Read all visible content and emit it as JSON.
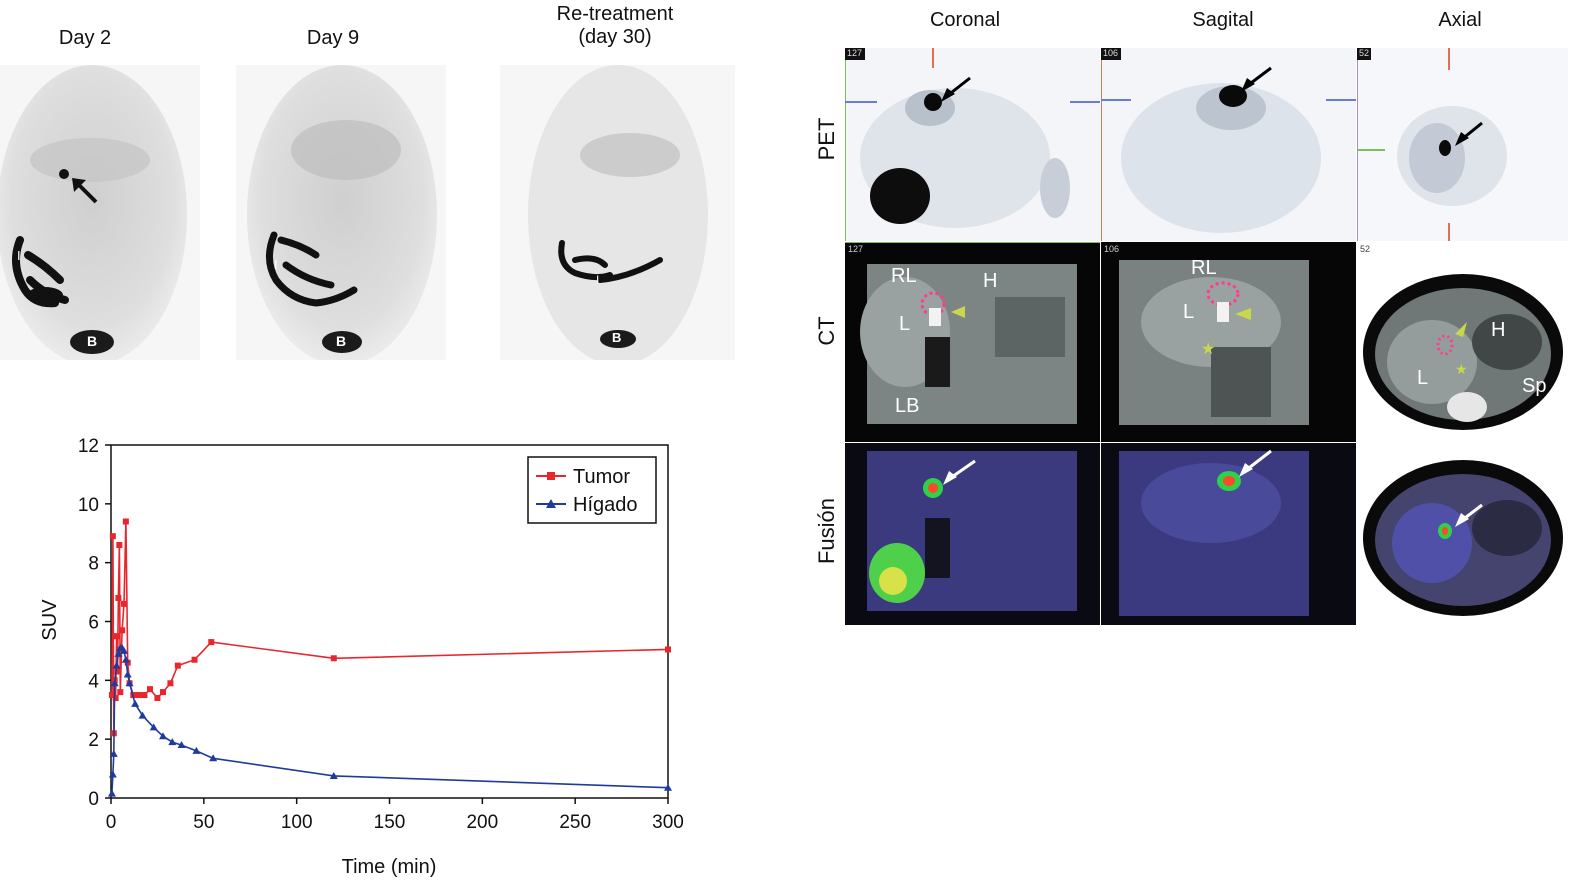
{
  "top_left": {
    "titles": [
      {
        "line1": "Day 2",
        "line2": ""
      },
      {
        "line1": "Day 9",
        "line2": ""
      },
      {
        "line1": "Re-treatment",
        "line2": "(day 30)"
      }
    ],
    "organ_labels": {
      "intestine": "I",
      "bladder": "B"
    }
  },
  "right_grid": {
    "columns": [
      "Coronal",
      "Sagital",
      "Axial"
    ],
    "rows": [
      "PET",
      "CT",
      "Fusión"
    ],
    "slice_numbers": [
      "127",
      "106",
      "52"
    ],
    "ct_labels": {
      "coronal": [
        "RL",
        "H",
        "L",
        "LB"
      ],
      "sagittal": [
        "RL",
        "L"
      ],
      "axial": [
        "H",
        "L",
        "Sp"
      ]
    }
  },
  "chart_data": {
    "type": "line",
    "title": "",
    "xlabel": "Time (min)",
    "ylabel": "SUV",
    "xlim": [
      0,
      300
    ],
    "ylim": [
      0,
      12
    ],
    "xticks": [
      0,
      50,
      100,
      150,
      200,
      250,
      300
    ],
    "yticks": [
      0,
      2,
      4,
      6,
      8,
      10,
      12
    ],
    "grid": false,
    "legend_position": "top-right",
    "series": [
      {
        "name": "Tumor",
        "color": "#e8262c",
        "marker": "square",
        "x": [
          0.5,
          1,
          1.5,
          2,
          2.5,
          3,
          3.5,
          4,
          4.5,
          5,
          6,
          7,
          8,
          9,
          10,
          12,
          15,
          18,
          21,
          25,
          28,
          32,
          36,
          45,
          54,
          120,
          300
        ],
        "y": [
          3.5,
          8.9,
          2.2,
          4.0,
          3.4,
          5.5,
          4.3,
          6.8,
          8.6,
          3.6,
          5.7,
          6.6,
          9.4,
          4.6,
          3.9,
          3.5,
          3.5,
          3.5,
          3.7,
          3.4,
          3.6,
          3.9,
          4.5,
          4.7,
          5.3,
          4.75,
          5.05
        ]
      },
      {
        "name": "Hígado",
        "color": "#1f3c9c",
        "marker": "triangle",
        "x": [
          0.5,
          1,
          1.5,
          2,
          3,
          4,
          5,
          6,
          7,
          8,
          9,
          10,
          13,
          17,
          23,
          28,
          33,
          38,
          46,
          55,
          120,
          300
        ],
        "y": [
          0.15,
          0.8,
          1.5,
          3.9,
          4.5,
          4.9,
          5.1,
          5.1,
          5.0,
          4.7,
          4.2,
          3.9,
          3.2,
          2.8,
          2.4,
          2.1,
          1.9,
          1.8,
          1.6,
          1.35,
          0.75,
          0.35
        ]
      }
    ]
  }
}
